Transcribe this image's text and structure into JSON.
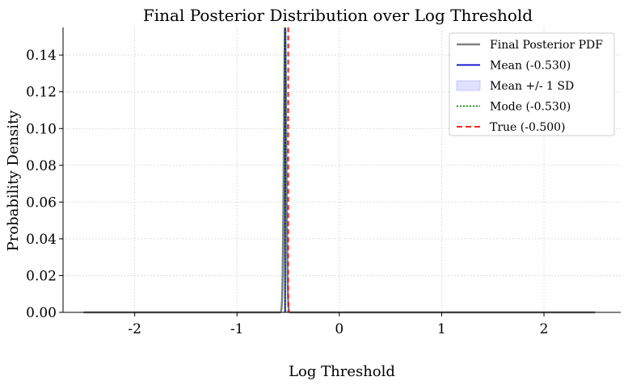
{
  "chart_data": {
    "type": "line",
    "title": "Final Posterior Distribution over Log Threshold",
    "xlabel": "Log Threshold",
    "ylabel": "Probability Density",
    "xlim": [
      -2.7,
      2.75
    ],
    "ylim": [
      0,
      0.155
    ],
    "xticks": [
      -2,
      -1,
      0,
      1,
      2
    ],
    "xtick_labels": [
      "-2",
      "-1",
      "0",
      "1",
      "2"
    ],
    "yticks": [
      0,
      0.02,
      0.04,
      0.06,
      0.08,
      0.1,
      0.12,
      0.14
    ],
    "ytick_labels": [
      "0.00",
      "0.02",
      "0.04",
      "0.06",
      "0.08",
      "0.10",
      "0.12",
      "0.14"
    ],
    "grid": true,
    "legend_position": "top-right",
    "pdf": {
      "name": "Final Posterior PDF",
      "color": "#808080",
      "x_range": [
        -2.5,
        2.5
      ],
      "mean": -0.53,
      "sd": 0.012,
      "peak": 0.155
    },
    "mean_line": {
      "name": "Mean (-0.530)",
      "x": -0.53,
      "color": "#0000cc",
      "style": "solid"
    },
    "sd_band": {
      "name": "Mean +/- 1 SD",
      "x": [
        -0.542,
        -0.518
      ],
      "color": "#aaaaff"
    },
    "mode_line": {
      "name": "Mode (-0.530)",
      "x": -0.53,
      "color": "#008000",
      "style": "dotted"
    },
    "true_line": {
      "name": "True (-0.500)",
      "x": -0.5,
      "color": "#ff0000",
      "style": "dashed"
    },
    "legend": [
      {
        "label": "Final Posterior PDF",
        "kind": "line",
        "color": "#808080",
        "dash": ""
      },
      {
        "label": "Mean (-0.530)",
        "kind": "line",
        "color": "#0000cc",
        "dash": ""
      },
      {
        "label": "Mean +/- 1 SD",
        "kind": "patch",
        "color": "#aaaaff",
        "dash": ""
      },
      {
        "label": "Mode (-0.530)",
        "kind": "line",
        "color": "#008000",
        "dash": "2,2"
      },
      {
        "label": "True (-0.500)",
        "kind": "line",
        "color": "#ff0000",
        "dash": "7,4"
      }
    ]
  }
}
